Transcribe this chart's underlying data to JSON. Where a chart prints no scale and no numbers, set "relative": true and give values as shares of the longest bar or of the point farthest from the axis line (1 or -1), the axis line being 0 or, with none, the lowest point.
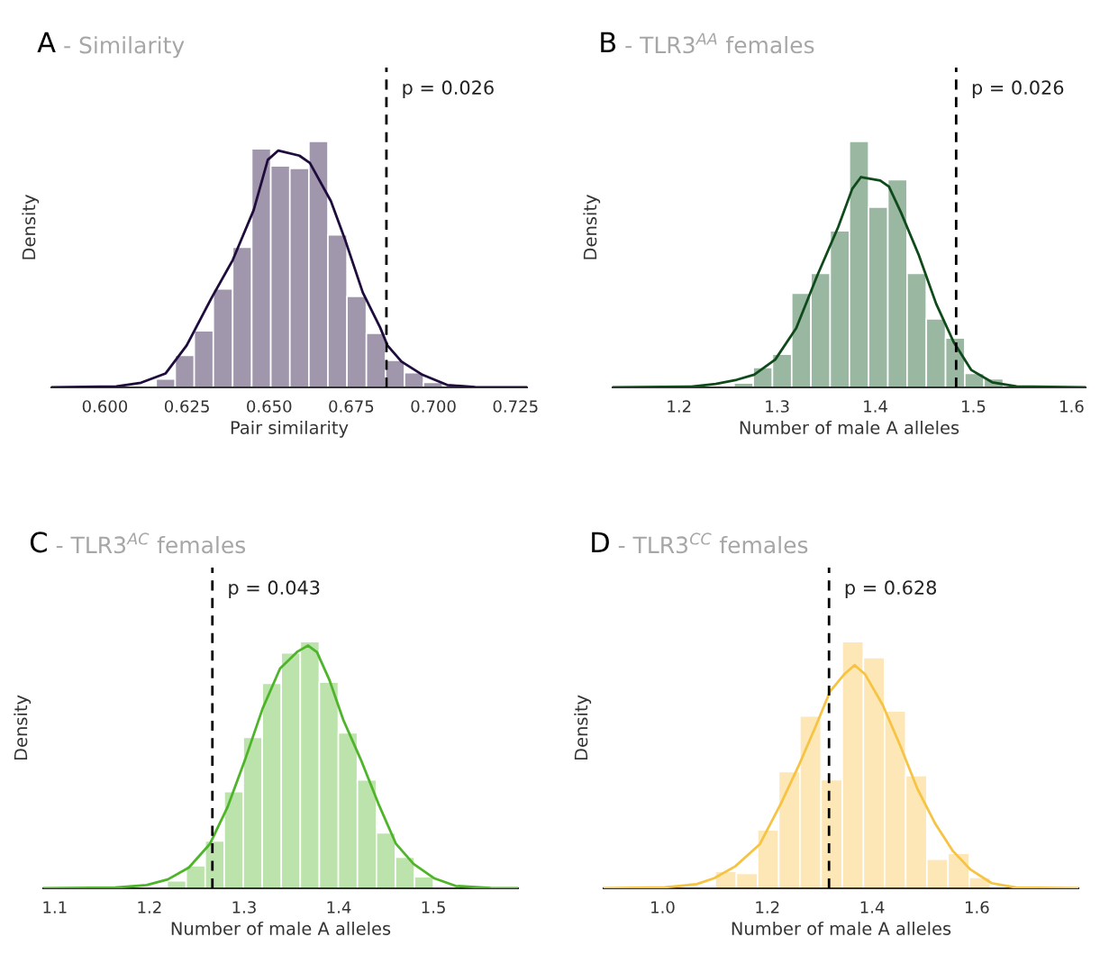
{
  "chart_data": [
    {
      "type": "histogram",
      "title": "A",
      "subtitle": "- Similarity",
      "xlabel": "Pair similarity",
      "ylabel": "Density",
      "relative": true,
      "grid": false,
      "xlim": [
        0.5837,
        0.7285
      ],
      "xticks": [
        {
          "value": 0.6,
          "label": "0.600"
        },
        {
          "value": 0.625,
          "label": "0.625"
        },
        {
          "value": 0.65,
          "label": "0.650"
        },
        {
          "value": 0.675,
          "label": "0.675"
        },
        {
          "value": 0.7,
          "label": "0.700"
        },
        {
          "value": 0.725,
          "label": "0.725"
        }
      ],
      "series": [
        {
          "color": "#a197ad",
          "bins": [
            0.6156,
            0.6214,
            0.6272,
            0.633,
            0.6389,
            0.6447,
            0.6505,
            0.6563,
            0.6621,
            0.6679,
            0.6737,
            0.6796,
            0.6854,
            0.6912,
            0.697,
            0.7028
          ],
          "values": [
            0.034,
            0.13,
            0.23,
            0.4,
            0.57,
            0.97,
            0.9,
            0.89,
            1.0,
            0.62,
            0.37,
            0.22,
            0.11,
            0.06,
            0.02
          ]
        },
        {
          "type": "line",
          "color": "#1f0c3c",
          "x": [
            0.5837,
            0.6035,
            0.611,
            0.6185,
            0.6249,
            0.6324,
            0.6389,
            0.6453,
            0.6496,
            0.6528,
            0.6592,
            0.6624,
            0.6688,
            0.6731,
            0.6785,
            0.6838,
            0.686,
            0.6903,
            0.6967,
            0.7042,
            0.7127,
            0.7285
          ],
          "values": [
            0,
            0.004,
            0.019,
            0.057,
            0.171,
            0.362,
            0.517,
            0.721,
            0.925,
            0.963,
            0.942,
            0.912,
            0.757,
            0.601,
            0.386,
            0.243,
            0.171,
            0.105,
            0.051,
            0.01,
            0.001,
            0
          ]
        }
      ],
      "annotations": [
        "p = 0.026"
      ],
      "ref_lines": [
        {
          "axis": "x",
          "value": 0.6857,
          "color": "#000000",
          "line_style": "dashed"
        }
      ]
    },
    {
      "type": "histogram",
      "title": "B",
      "subtitle": "- TLR3$^{AA}$ females",
      "xlabel": "Number of male A alleles",
      "ylabel": "Density",
      "relative": true,
      "grid": false,
      "xlim": [
        1.1323,
        1.6143
      ],
      "xticks": [
        1.2,
        1.3,
        1.4,
        1.5,
        1.6
      ],
      "series": [
        {
          "color": "#9ab7a2",
          "bins": [
            1.256,
            1.2756,
            1.2952,
            1.3148,
            1.3344,
            1.354,
            1.3736,
            1.3932,
            1.4128,
            1.4324,
            1.452,
            1.4716,
            1.4912,
            1.5108,
            1.5304
          ],
          "values": [
            0.018,
            0.081,
            0.135,
            0.383,
            0.464,
            0.637,
            1.0,
            0.733,
            0.844,
            0.464,
            0.279,
            0.201,
            0.057,
            0.035
          ]
        },
        {
          "type": "line",
          "color": "#0f4a1a",
          "x": [
            1.1323,
            1.2125,
            1.2374,
            1.2588,
            1.2766,
            1.298,
            1.3194,
            1.3408,
            1.3622,
            1.3765,
            1.3854,
            1.405,
            1.4139,
            1.4264,
            1.4442,
            1.462,
            1.4799,
            1.4977,
            1.5191,
            1.544,
            1.6143
          ],
          "values": [
            0,
            0.003,
            0.014,
            0.031,
            0.052,
            0.113,
            0.241,
            0.454,
            0.652,
            0.807,
            0.855,
            0.841,
            0.816,
            0.709,
            0.539,
            0.34,
            0.184,
            0.071,
            0.021,
            0.004,
            0
          ]
        }
      ],
      "annotations": [
        "p = 0.026"
      ],
      "ref_lines": [
        {
          "axis": "x",
          "value": 1.4824,
          "color": "#000000",
          "line_style": "dashed"
        }
      ]
    },
    {
      "type": "histogram",
      "title": "C",
      "subtitle": "- TLR3$^{AC}$ females",
      "xlabel": "Number of male A alleles",
      "ylabel": "Density",
      "relative": true,
      "grid": false,
      "xlim": [
        1.0878,
        1.5894
      ],
      "xticks": [
        1.1,
        1.2,
        1.3,
        1.4,
        1.5
      ],
      "series": [
        {
          "color": "#bce3ab",
          "bins": [
            1.2187,
            1.2388,
            1.2589,
            1.279,
            1.2991,
            1.3192,
            1.3393,
            1.3594,
            1.3795,
            1.3996,
            1.4197,
            1.4398,
            1.4599,
            1.48,
            1.5001
          ],
          "values": [
            0.03,
            0.092,
            0.192,
            0.392,
            0.612,
            0.831,
            0.954,
            1.0,
            0.836,
            0.63,
            0.439,
            0.225,
            0.126,
            0.047
          ]
        },
        {
          "type": "line",
          "color": "#4eb52a",
          "x": [
            1.0878,
            1.1638,
            1.197,
            1.2194,
            1.2416,
            1.2639,
            1.2824,
            1.301,
            1.3195,
            1.338,
            1.3566,
            1.3677,
            1.377,
            1.39,
            1.4048,
            1.4234,
            1.4419,
            1.4605,
            1.479,
            1.5012,
            1.5235,
            1.5605,
            1.5894
          ],
          "values": [
            0,
            0.003,
            0.013,
            0.036,
            0.084,
            0.18,
            0.328,
            0.521,
            0.728,
            0.891,
            0.96,
            0.984,
            0.957,
            0.846,
            0.683,
            0.521,
            0.343,
            0.18,
            0.099,
            0.04,
            0.01,
            0.001,
            0
          ]
        }
      ],
      "annotations": [
        "p = 0.043"
      ],
      "ref_lines": [
        {
          "axis": "x",
          "value": 1.2665,
          "color": "#000000",
          "line_style": "dashed"
        }
      ]
    },
    {
      "type": "histogram",
      "title": "D",
      "subtitle": "- TLR3$^{CC}$ females",
      "xlabel": "Number of male A alleles",
      "ylabel": "Density",
      "relative": true,
      "grid": false,
      "xlim": [
        0.8874,
        1.7937
      ],
      "xticks": [
        {
          "value": 1.0,
          "label": "1.0"
        },
        {
          "value": 1.2,
          "label": "1.2"
        },
        {
          "value": 1.4,
          "label": "1.4"
        },
        {
          "value": 1.6,
          "label": "1.6"
        }
      ],
      "series": [
        {
          "color": "#fde7b6",
          "bins": [
            1.1005,
            1.1409,
            1.1813,
            1.2217,
            1.2621,
            1.3025,
            1.3429,
            1.3833,
            1.4237,
            1.4641,
            1.5045,
            1.5449,
            1.5853,
            1.6257
          ],
          "values": [
            0.069,
            0.061,
            0.237,
            0.473,
            0.699,
            0.44,
            1.0,
            0.935,
            0.719,
            0.457,
            0.118,
            0.142,
            0.044
          ]
        },
        {
          "type": "line",
          "color": "#f6c343",
          "x": [
            0.8874,
            1.0047,
            1.065,
            1.0985,
            1.1387,
            1.1857,
            1.2259,
            1.2594,
            1.2929,
            1.3197,
            1.3465,
            1.3666,
            1.3867,
            1.4202,
            1.4537,
            1.4873,
            1.5208,
            1.5543,
            1.5878,
            1.628,
            1.6749,
            1.7937
          ],
          "values": [
            0,
            0.004,
            0.017,
            0.041,
            0.089,
            0.179,
            0.344,
            0.495,
            0.66,
            0.798,
            0.867,
            0.905,
            0.867,
            0.743,
            0.578,
            0.399,
            0.261,
            0.151,
            0.076,
            0.021,
            0.003,
            0
          ]
        }
      ],
      "annotations": [
        "p = 0.628"
      ],
      "ref_lines": [
        {
          "axis": "x",
          "value": 1.3177,
          "color": "#000000",
          "line_style": "dashed"
        }
      ]
    }
  ]
}
